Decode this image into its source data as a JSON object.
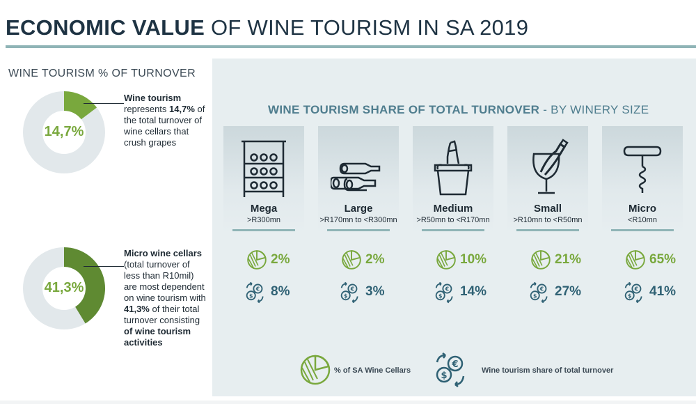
{
  "header": {
    "title_bold": "ECONOMIC VALUE",
    "title_rest": " OF WINE TOURISM IN SA 2019"
  },
  "left": {
    "subtitle": "WINE TOURISM % OF TURNOVER",
    "donut1": {
      "label": "14,7%",
      "value": 14.7
    },
    "note1": {
      "p1": "Wine tourism",
      "p2": " represents ",
      "p3": "14,7%",
      "p4": " of the total turnover of wine cellars that crush grapes"
    },
    "donut2": {
      "label": "41,3%",
      "value": 41.3
    },
    "note2": {
      "p1": "Micro wine cellars",
      "p2": " (total turnover of less than R10mil) are most dependent on wine tourism with ",
      "p3": "41,3%",
      "p4": " of their total turnover consisting ",
      "p5": "of wine tourism activities"
    }
  },
  "panel": {
    "title_bold": "WINE TOURISM SHARE OF TOTAL TURNOVER",
    "title_rest": " - BY WINERY SIZE"
  },
  "chart_data": {
    "type": "table",
    "title": "WINE TOURISM SHARE OF TOTAL TURNOVER - BY WINERY SIZE",
    "categories": [
      {
        "name": "Mega",
        "range": ">R300mn",
        "icon": "wine-rack-icon"
      },
      {
        "name": "Large",
        "range": ">R170mn to <R300mn",
        "icon": "wine-bottles-icon"
      },
      {
        "name": "Medium",
        "range": ">R50mn to <R170mn",
        "icon": "ice-bucket-icon"
      },
      {
        "name": "Small",
        "range": ">R10mn to <R50mn",
        "icon": "wine-glass-icon"
      },
      {
        "name": "Micro",
        "range": "<R10mn",
        "icon": "corkscrew-icon"
      }
    ],
    "series": [
      {
        "name": "% of SA Wine Cellars",
        "values": [
          2,
          2,
          10,
          21,
          65
        ],
        "labels": [
          "2%",
          "2%",
          "10%",
          "21%",
          "65%"
        ],
        "color": "#79a83d"
      },
      {
        "name": "Wine tourism share of total turnover",
        "values": [
          8,
          3,
          14,
          27,
          41
        ],
        "labels": [
          "8%",
          "3%",
          "14%",
          "27%",
          "41%"
        ],
        "color": "#2f6174"
      }
    ],
    "donuts": [
      {
        "label": "14,7%",
        "value": 14.7
      },
      {
        "label": "41,3%",
        "value": 41.3
      }
    ]
  },
  "legend": {
    "cellars": "% of SA Wine Cellars",
    "turnover": "Wine tourism share of total turnover"
  },
  "colors": {
    "green": "#79a83d",
    "teal": "#2f6174",
    "panel": "#e7eef0",
    "rule": "#8fb4b6",
    "donut_track": "#e2e8eb"
  }
}
